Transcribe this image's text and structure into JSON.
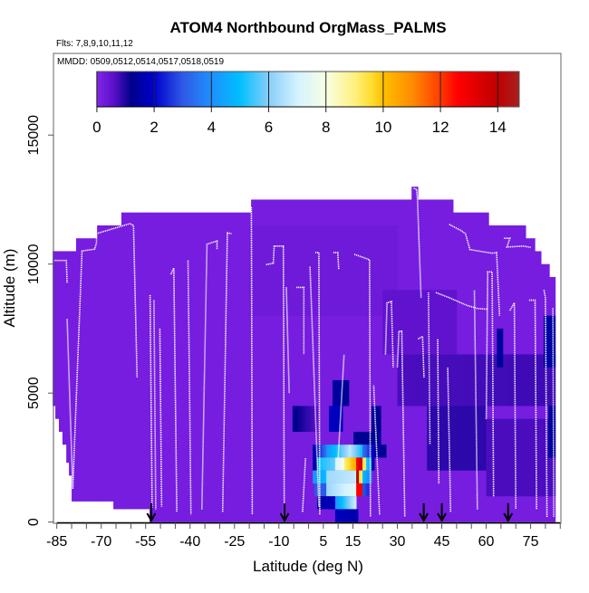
{
  "chart_data": {
    "type": "heatmap",
    "title": "ATOM4 Northbound OrgMass_PALMS",
    "subtitle_flights": "Flts: 7,8,9,10,11,12",
    "subtitle_dates": "MMDD: 0509,0512,0514,0517,0518,0519",
    "xlabel": "Latitude (deg N)",
    "ylabel": "Altitude (m)",
    "xlim": [
      -86.5,
      85
    ],
    "ylim": [
      0,
      17500
    ],
    "x_ticks": [
      -85,
      -80,
      -75,
      -70,
      -65,
      -60,
      -55,
      -50,
      -45,
      -40,
      -35,
      -30,
      -25,
      -20,
      -15,
      -10,
      -5,
      0,
      5,
      10,
      15,
      20,
      25,
      30,
      35,
      40,
      45,
      50,
      55,
      60,
      65,
      70,
      75,
      80,
      85
    ],
    "x_tick_labels": [
      "-85",
      "-70",
      "-55",
      "-40",
      "-25",
      "-10",
      "5",
      "15",
      "30",
      "45",
      "60",
      "75"
    ],
    "x_tick_label_values": [
      -85,
      -70,
      -55,
      -40,
      -25,
      -10,
      5,
      15,
      30,
      45,
      60,
      75
    ],
    "y_ticks": [
      0,
      5000,
      10000,
      15000
    ],
    "y_tick_labels": [
      "0",
      "5000",
      "10000",
      "15000"
    ],
    "colorbar": {
      "range": [
        0,
        14.75
      ],
      "ticks": [
        0,
        2,
        4,
        6,
        8,
        10,
        12,
        14
      ],
      "tick_labels": [
        "0",
        "2",
        "4",
        "6",
        "8",
        "10",
        "12",
        "14"
      ],
      "stops": [
        [
          0,
          "#8424ea"
        ],
        [
          0.6,
          "#5a10c8"
        ],
        [
          1.2,
          "#00008b"
        ],
        [
          2,
          "#0000cd"
        ],
        [
          3,
          "#2f5ae6"
        ],
        [
          4,
          "#1e90ff"
        ],
        [
          5,
          "#00bfff"
        ],
        [
          6,
          "#87cefa"
        ],
        [
          7,
          "#d4f2ff"
        ],
        [
          8,
          "#f8ffe4"
        ],
        [
          9,
          "#fff080"
        ],
        [
          9.6,
          "#ffdc30"
        ],
        [
          10,
          "#ffc000"
        ],
        [
          11,
          "#ff8c00"
        ],
        [
          12,
          "#ff3c00"
        ],
        [
          12.6,
          "#ff0000"
        ],
        [
          13.6,
          "#d00000"
        ],
        [
          14,
          "#c00000"
        ],
        [
          14.75,
          "#a82020"
        ]
      ]
    },
    "background_value": 0.2,
    "coverage_columns": [
      [
        -86.4,
        -85.5,
        4500,
        10500
      ],
      [
        -85.5,
        -84.3,
        4000,
        10500
      ],
      [
        -84.3,
        -83.1,
        3500,
        10500
      ],
      [
        -83.1,
        -81.8,
        3000,
        10500
      ],
      [
        -81.8,
        -80.9,
        2300,
        10500
      ],
      [
        -80.9,
        -80,
        1800,
        10500
      ],
      [
        -80,
        -78.5,
        800,
        10500
      ],
      [
        -78.5,
        -71.4,
        800,
        11000
      ],
      [
        -71.4,
        -65.9,
        800,
        11500
      ],
      [
        -65.9,
        -63.2,
        500,
        11500
      ],
      [
        -63.2,
        -53.7,
        500,
        12000
      ],
      [
        -53.7,
        -19.4,
        0,
        12000
      ],
      [
        -19.4,
        34.8,
        0,
        12500
      ],
      [
        34.8,
        36.9,
        0,
        13000
      ],
      [
        36.9,
        48.8,
        0,
        12500
      ],
      [
        48.8,
        60.8,
        0,
        12000
      ],
      [
        60.8,
        73.3,
        0,
        11500
      ],
      [
        73.3,
        76.4,
        0,
        11000
      ],
      [
        76.4,
        78.5,
        0,
        10500
      ],
      [
        78.5,
        81.3,
        0,
        10000
      ],
      [
        81.3,
        83.3,
        0,
        9500
      ]
    ],
    "patches": [
      [
        -20,
        30,
        8000,
        11500,
        0.3,
        0.3
      ],
      [
        30,
        83.3,
        4500,
        6500,
        0.7,
        0.8
      ],
      [
        40,
        60,
        2000,
        4500,
        0.9,
        0.9
      ],
      [
        60,
        83.3,
        1000,
        4000,
        0.7,
        0.7
      ],
      [
        25,
        50,
        6500,
        9000,
        0.5,
        0.5
      ],
      [
        63.6,
        65.6,
        6000,
        7500,
        1.4,
        1.4
      ],
      [
        79.4,
        83.3,
        6000,
        8000,
        1.5,
        1.5
      ],
      [
        81,
        83.3,
        2500,
        4500,
        1.4,
        1.4
      ],
      [
        -5.4,
        3,
        3500,
        4500,
        1.3,
        0.6
      ],
      [
        8.1,
        13.6,
        4500,
        5500,
        1.5,
        1.3
      ],
      [
        6.9,
        11.5,
        3500,
        4500,
        1.8,
        1.8
      ],
      [
        21.3,
        24.4,
        3500,
        4500,
        1.4,
        1.2
      ],
      [
        15.2,
        24.4,
        3000,
        3500,
        1.3,
        1.3
      ],
      [
        1.4,
        6,
        2500,
        3000,
        1.4,
        3.5
      ],
      [
        6,
        13.6,
        2500,
        3000,
        4,
        6.5
      ],
      [
        13.6,
        18.2,
        2500,
        3000,
        6.8,
        5
      ],
      [
        18.2,
        22.2,
        2500,
        3000,
        3.5,
        1.8
      ],
      [
        22.2,
        26.2,
        2500,
        3000,
        1.5,
        1.2
      ],
      [
        1.4,
        2.9,
        2000,
        2500,
        1.6,
        1.6
      ],
      [
        2.9,
        9,
        2000,
        2500,
        5,
        5.8
      ],
      [
        9,
        12.1,
        2000,
        2500,
        7,
        8
      ],
      [
        12.1,
        16.1,
        2000,
        2500,
        9,
        10.5
      ],
      [
        16.1,
        18.2,
        2000,
        2500,
        12.5,
        13.8
      ],
      [
        18.2,
        19.4,
        2000,
        2500,
        9.5,
        9
      ],
      [
        19.4,
        21.3,
        2000,
        2500,
        5.5,
        4
      ],
      [
        21.3,
        22.2,
        2000,
        2500,
        1.6,
        1.6
      ],
      [
        1.4,
        6,
        1500,
        2000,
        4,
        5
      ],
      [
        6,
        16.1,
        1500,
        2000,
        6.3,
        6.8
      ],
      [
        16.1,
        17,
        1500,
        2000,
        14,
        14
      ],
      [
        17,
        18.2,
        1500,
        2000,
        9.5,
        9
      ],
      [
        18.2,
        21.3,
        1500,
        2000,
        5,
        3.5
      ],
      [
        2,
        6,
        1000,
        1500,
        3,
        3
      ],
      [
        6,
        16.1,
        1000,
        1500,
        6.2,
        7.5
      ],
      [
        16.1,
        18.2,
        1000,
        1500,
        12.5,
        13
      ],
      [
        18.2,
        20.4,
        1000,
        1500,
        3,
        2.5
      ],
      [
        2.9,
        9,
        500,
        1000,
        1.5,
        1.8
      ],
      [
        9,
        16.1,
        500,
        1000,
        4,
        7
      ],
      [
        9,
        16.7,
        0,
        500,
        1.8,
        1.6
      ]
    ],
    "flight_tracks": [
      [
        [
          -86.3,
          10140
        ],
        [
          -81.8,
          10140
        ],
        [
          -81.5,
          9260
        ]
      ],
      [
        [
          -81.5,
          7870
        ],
        [
          -79.6,
          1290
        ]
      ],
      [
        [
          -79.6,
          1290
        ],
        [
          -76.5,
          10510
        ],
        [
          -72.2,
          10580
        ],
        [
          -71.6,
          10830
        ],
        [
          -71.6,
          11180
        ],
        [
          -60.3,
          11570
        ],
        [
          -59.1,
          11500
        ],
        [
          -57.9,
          5610
        ]
      ],
      [
        [
          -53.5,
          8800
        ],
        [
          -52.8,
          560
        ]
      ],
      [
        [
          -52.2,
          8600
        ],
        [
          -51.6,
          500
        ]
      ],
      [
        [
          -50.2,
          7500
        ],
        [
          -49.6,
          600
        ]
      ],
      [
        [
          -46.5,
          9600
        ],
        [
          -45.5,
          9850
        ],
        [
          -44.5,
          400
        ]
      ],
      [
        [
          -40.7,
          10140
        ],
        [
          -39.7,
          300
        ]
      ],
      [
        [
          -36,
          500
        ],
        [
          -34.3,
          10770
        ],
        [
          -30.9,
          10900
        ],
        [
          -30.9,
          10560
        ]
      ],
      [
        [
          -29,
          400
        ],
        [
          -27.4,
          11210
        ],
        [
          -26,
          11180
        ]
      ],
      [
        [
          -21.1,
          12210
        ],
        [
          -19.3,
          12210
        ],
        [
          -19,
          300
        ]
      ],
      [
        [
          -14.3,
          9980
        ],
        [
          -11.9,
          10030
        ],
        [
          -11.6,
          10700
        ],
        [
          -8.5,
          10700
        ],
        [
          -8.2,
          200
        ]
      ],
      [
        [
          -7.5,
          9100
        ],
        [
          -6.5,
          5000
        ]
      ],
      [
        [
          -4.1,
          9100
        ],
        [
          -1.6,
          9100
        ],
        [
          -1.6,
          6500
        ]
      ],
      [
        [
          0.5,
          9900
        ],
        [
          3.5,
          600
        ]
      ],
      [
        [
          2.3,
          10450
        ],
        [
          3.5,
          10450
        ],
        [
          3.8,
          300
        ]
      ],
      [
        [
          8.4,
          10450
        ],
        [
          9.9,
          10450
        ],
        [
          10.2,
          9800
        ]
      ],
      [
        [
          15.5,
          10380
        ],
        [
          20.6,
          10170
        ],
        [
          20.9,
          200
        ]
      ],
      [
        [
          35.5,
          12940
        ],
        [
          36.5,
          12900
        ],
        [
          36.8,
          12500
        ],
        [
          38,
          8700
        ]
      ],
      [
        [
          47.5,
          11540
        ],
        [
          51.5,
          11300
        ],
        [
          53,
          11180
        ],
        [
          54.5,
          10560
        ],
        [
          62,
          10420
        ],
        [
          63.5,
          10450
        ],
        [
          64.5,
          8000
        ]
      ],
      [
        [
          66,
          11000
        ],
        [
          68,
          11000
        ],
        [
          67,
          10660
        ],
        [
          72.5,
          10700
        ],
        [
          75,
          10650
        ]
      ],
      [
        [
          43,
          8900
        ],
        [
          47.5,
          8700
        ],
        [
          53.5,
          8400
        ],
        [
          57,
          8280
        ],
        [
          60.5,
          8250
        ]
      ],
      [
        [
          40.5,
          8900
        ],
        [
          41,
          3000
        ]
      ],
      [
        [
          37,
          7100
        ],
        [
          38.5,
          7200
        ],
        [
          39,
          5600
        ]
      ],
      [
        [
          30,
          6000
        ],
        [
          30.5,
          7400
        ],
        [
          31.5,
          7400
        ],
        [
          32.5,
          200
        ]
      ],
      [
        [
          26,
          6500
        ],
        [
          26.5,
          8500
        ],
        [
          28,
          8550
        ],
        [
          28.6,
          6000
        ]
      ],
      [
        [
          68,
          8200
        ],
        [
          69.5,
          8500
        ],
        [
          70,
          500
        ]
      ],
      [
        [
          74.5,
          8600
        ],
        [
          76.5,
          8600
        ],
        [
          77,
          500
        ]
      ],
      [
        [
          79.5,
          9000
        ],
        [
          80,
          8700
        ],
        [
          80.5,
          200
        ]
      ],
      [
        [
          82.5,
          8300
        ],
        [
          82.8,
          200
        ]
      ],
      [
        [
          57,
          500
        ],
        [
          56,
          9000
        ]
      ],
      [
        [
          44,
          1500
        ],
        [
          43.6,
          7100
        ]
      ],
      [
        [
          48,
          400
        ],
        [
          47,
          6000
        ]
      ],
      [
        [
          10,
          2500
        ],
        [
          12,
          6500
        ]
      ],
      [
        [
          -2,
          400
        ],
        [
          -1,
          2500
        ]
      ],
      [
        [
          24,
          300
        ],
        [
          22,
          5300
        ]
      ],
      [
        [
          60,
          4000
        ],
        [
          60.5,
          9700
        ],
        [
          62,
          9700
        ],
        [
          62.5,
          1000
        ]
      ]
    ],
    "arrow_markers_lat": [
      -53.1,
      -8.1,
      38.9,
      45.0,
      67.4
    ]
  }
}
